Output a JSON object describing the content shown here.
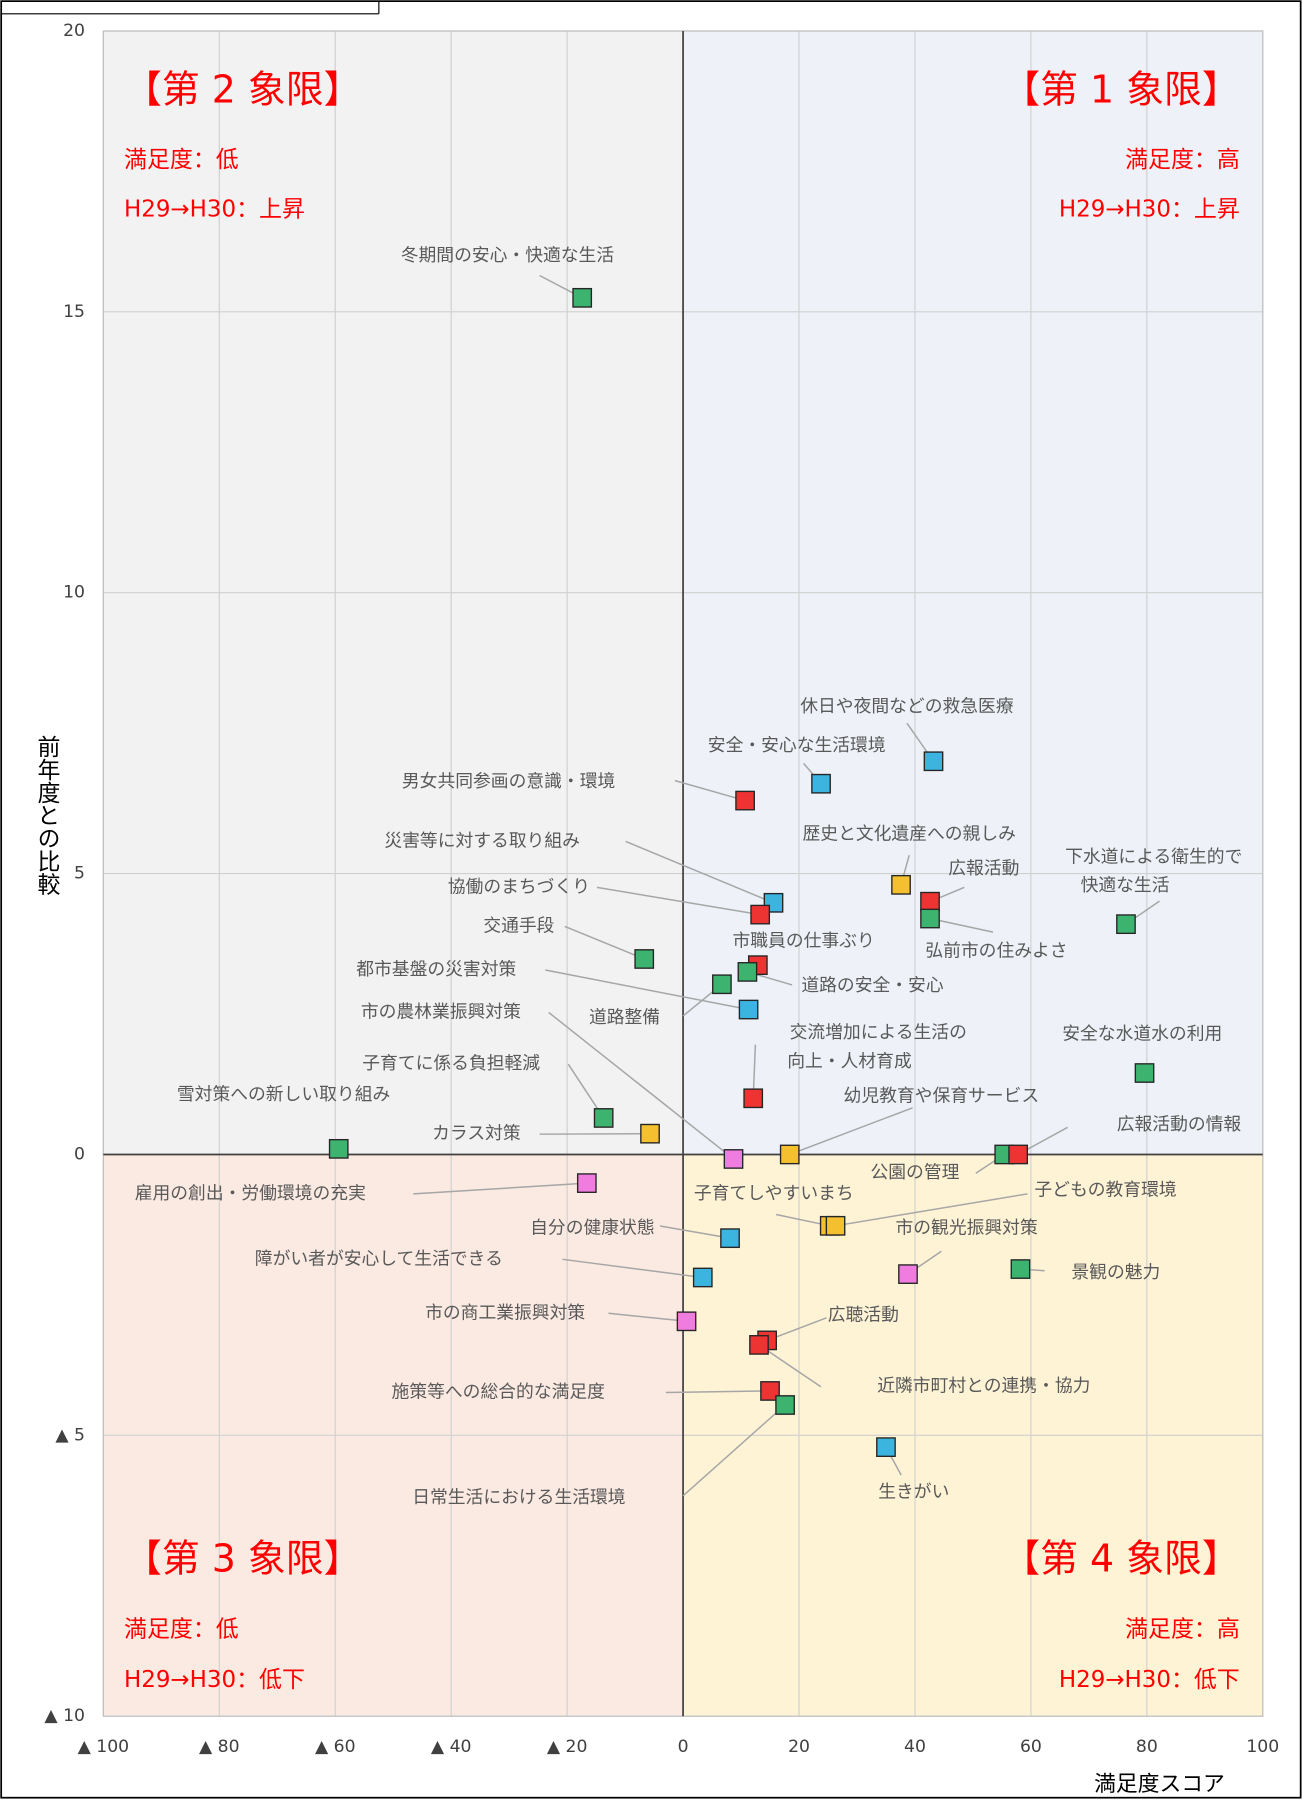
{
  "chart_data": {
    "type": "scatter",
    "x_label": "満足度スコア",
    "y_label": "前年度との比較",
    "xlim": [
      -100,
      100
    ],
    "ylim": [
      -10,
      20
    ],
    "xticks": [
      {
        "value": -100,
        "label": "▲ 100"
      },
      {
        "value": -80,
        "label": "▲ 80"
      },
      {
        "value": -60,
        "label": "▲ 60"
      },
      {
        "value": -40,
        "label": "▲ 40"
      },
      {
        "value": -20,
        "label": "▲ 20"
      },
      0,
      20,
      40,
      60,
      80,
      100
    ],
    "yticks": [
      {
        "value": -10,
        "label": "▲ 10"
      },
      {
        "value": -5,
        "label": "▲ 5"
      },
      0,
      5,
      10,
      15,
      20
    ],
    "grid": true,
    "quadrants": [
      {
        "title": "【第 1 象限】",
        "lines": [
          "満足度：高",
          "H29→H30：上昇"
        ],
        "color": "#eef2f8"
      },
      {
        "title": "【第 2 象限】",
        "lines": [
          "満足度：低",
          "H29→H30：上昇"
        ],
        "color": "#f2f2f2"
      },
      {
        "title": "【第 3 象限】",
        "lines": [
          "満足度：低",
          "H29→H30：低下"
        ],
        "color": "#fbeae2"
      },
      {
        "title": "【第 4 象限】",
        "lines": [
          "満足度：高",
          "H29→H30：低下"
        ],
        "color": "#fff3d6"
      }
    ],
    "points": [
      {
        "name": "冬期間の安心・快適な生活",
        "x": -17.4,
        "y": 15.25,
        "color": "#3cb36e"
      },
      {
        "name": "休日や夜間などの救急医療",
        "x": 43.2,
        "y": 7.0,
        "color": "#3cb4e0"
      },
      {
        "name": "安全・安心な生活環境",
        "x": 23.8,
        "y": 6.6,
        "color": "#3cb4e0"
      },
      {
        "name": "男女共同参画の意識・環境",
        "x": 10.7,
        "y": 6.3,
        "color": "#ee3333"
      },
      {
        "name": "歴史と文化遺産への親しみ",
        "x": 37.6,
        "y": 4.8,
        "color": "#f5c030"
      },
      {
        "name": "広報活動",
        "x": 42.6,
        "y": 4.5,
        "color": "#ee3333"
      },
      {
        "name": "弘前市の住みよさ",
        "x": 42.6,
        "y": 4.2,
        "color": "#3cb36e"
      },
      {
        "name": [
          "下水道による衛生的で",
          "快適な生活"
        ],
        "x": 76.4,
        "y": 4.1,
        "color": "#3cb36e"
      },
      {
        "name": "災害等に対する取り組み",
        "x": 15.6,
        "y": 4.48,
        "color": "#3cb4e0"
      },
      {
        "name": "協働のまちづくり",
        "x": 13.3,
        "y": 4.27,
        "color": "#ee3333"
      },
      {
        "name": "交通手段",
        "x": -6.7,
        "y": 3.48,
        "color": "#3cb36e"
      },
      {
        "name": "市職員の仕事ぶり",
        "x": 12.9,
        "y": 3.37,
        "color": "#ee3333"
      },
      {
        "name": "道路の安全・安心",
        "x": 11.1,
        "y": 3.25,
        "color": "#3cb36e"
      },
      {
        "name": "道路整備",
        "x": 6.7,
        "y": 3.03,
        "color": "#3cb36e"
      },
      {
        "name": "都市基盤の災害対策",
        "x": 11.3,
        "y": 2.58,
        "color": "#3cb4e0"
      },
      {
        "name": [
          "交流増加による生活の",
          "向上・人材育成"
        ],
        "x": 12.1,
        "y": 1.0,
        "color": "#ee3333"
      },
      {
        "name": "安全な水道水の利用",
        "x": 79.6,
        "y": 1.45,
        "color": "#3cb36e"
      },
      {
        "name": "雪対策への新しい取り組み",
        "x": -59.4,
        "y": 0.1,
        "color": "#3cb36e"
      },
      {
        "name": "子育てに係る負担軽減",
        "x": -13.7,
        "y": 0.65,
        "color": "#3cb36e"
      },
      {
        "name": "カラス対策",
        "x": -5.7,
        "y": 0.37,
        "color": "#f5c030"
      },
      {
        "name": "市の農林業振興対策",
        "x": 8.7,
        "y": -0.08,
        "color": "#f07ce0"
      },
      {
        "name": "幼児教育や保育サービス",
        "x": 18.4,
        "y": 0.0,
        "color": "#f5c030"
      },
      {
        "name": "公園の管理",
        "x": 55.4,
        "y": 0.0,
        "color": "#3cb36e"
      },
      {
        "name": "広報活動の情報",
        "x": 57.8,
        "y": 0.0,
        "color": "#ee3333"
      },
      {
        "name": "雇用の創出・労働環境の充実",
        "x": -16.6,
        "y": -0.51,
        "color": "#f07ce0"
      },
      {
        "name": "子育てしやすいまち",
        "x": 25.3,
        "y": -1.27,
        "color": "#f5c030"
      },
      {
        "name": "子どもの教育環境",
        "x": 26.3,
        "y": -1.27,
        "color": "#f5c030"
      },
      {
        "name": "自分の健康状態",
        "x": 8.1,
        "y": -1.49,
        "color": "#3cb4e0"
      },
      {
        "name": "市の観光振興対策",
        "x": 38.8,
        "y": -2.13,
        "color": "#f07ce0"
      },
      {
        "name": "景観の魅力",
        "x": 58.2,
        "y": -2.04,
        "color": "#3cb36e"
      },
      {
        "name": "障がい者が安心して生活できる",
        "x": 3.4,
        "y": -2.19,
        "color": "#3cb4e0"
      },
      {
        "name": "市の商工業振興対策",
        "x": 0.6,
        "y": -2.97,
        "color": "#f07ce0"
      },
      {
        "name": "広聴活動",
        "x": 14.5,
        "y": -3.31,
        "color": "#ee3333"
      },
      {
        "name": "近隣市町村との連携・協力",
        "x": 13.1,
        "y": -3.39,
        "color": "#ee3333"
      },
      {
        "name": "施策等への総合的な満足度",
        "x": 15.0,
        "y": -4.21,
        "color": "#ee3333"
      },
      {
        "name": "日常生活における生活環境",
        "x": 17.6,
        "y": -4.46,
        "color": "#3cb36e"
      },
      {
        "name": "生きがい",
        "x": 35.0,
        "y": -5.21,
        "color": "#3cb4e0"
      }
    ]
  }
}
